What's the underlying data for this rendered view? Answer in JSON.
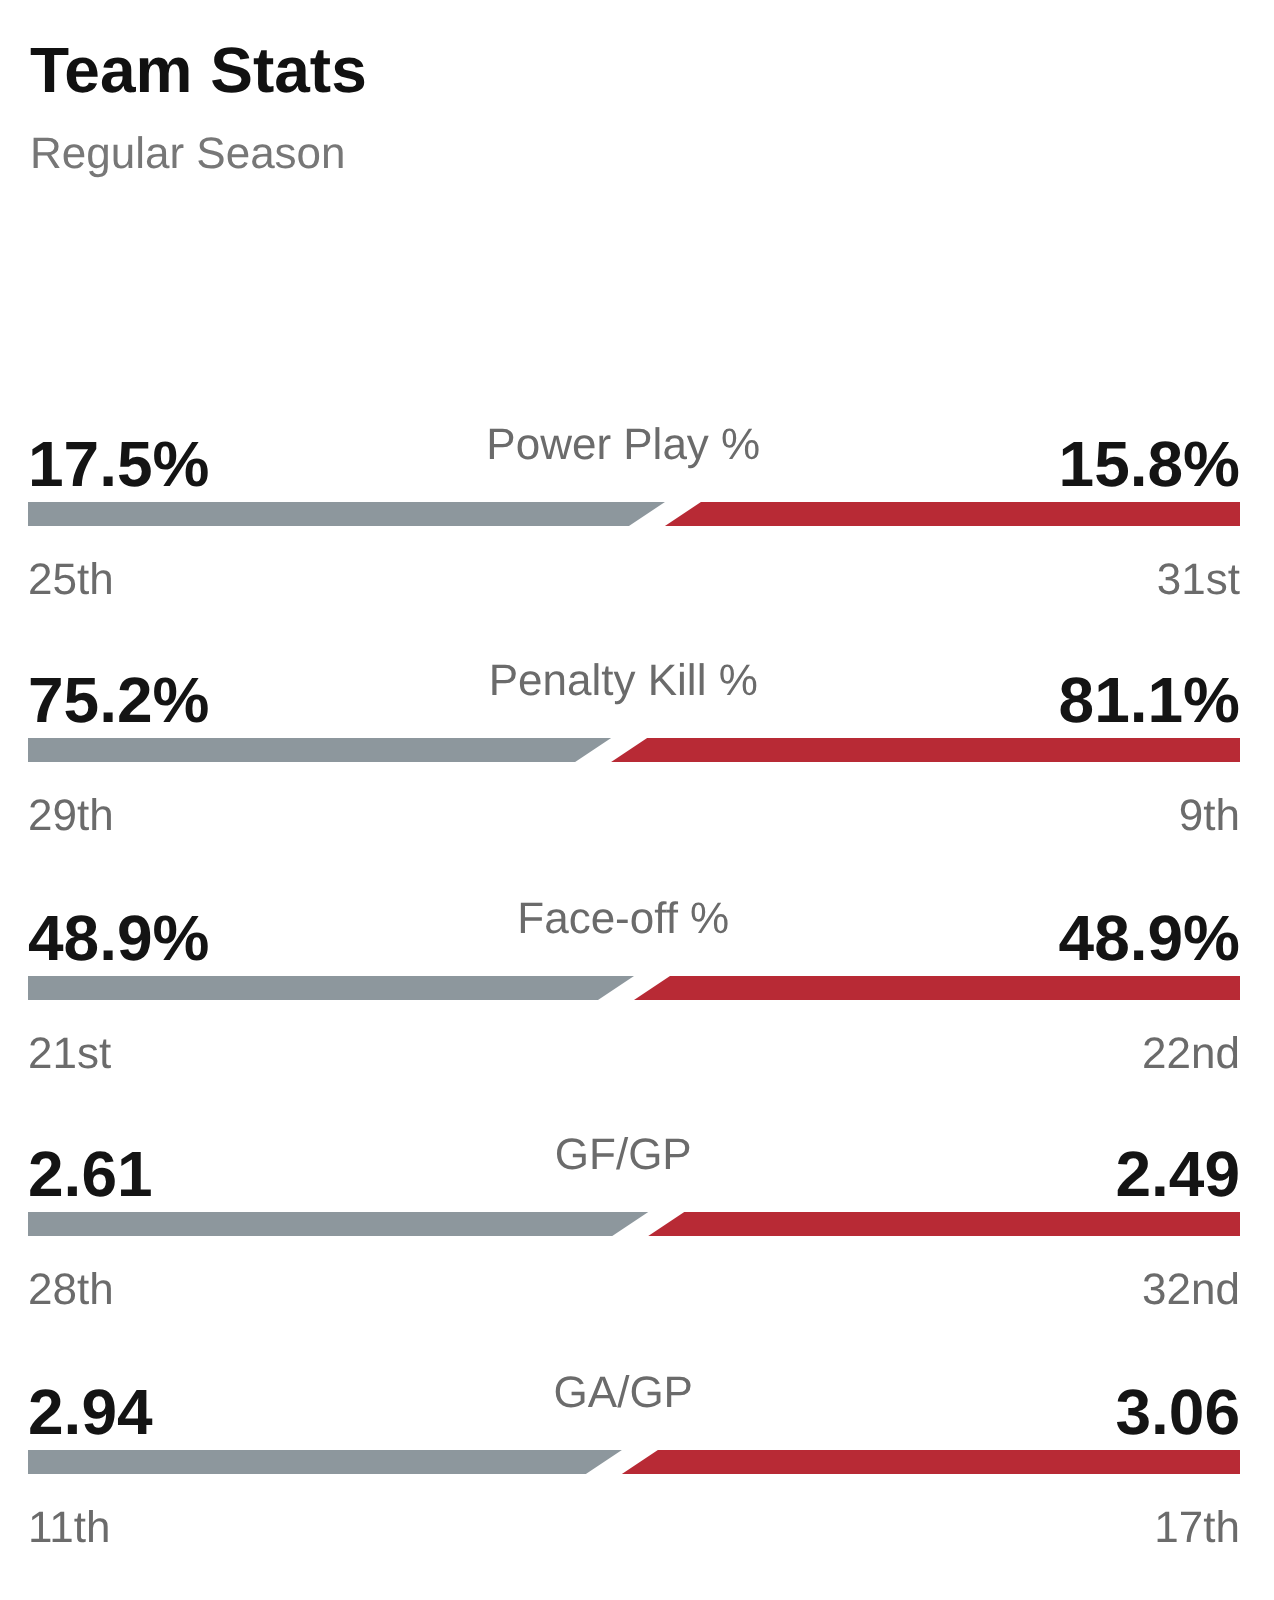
{
  "chart_data": [
    {
      "type": "other",
      "title": "Team Stats",
      "subtitle": "Regular Season"
    },
    {
      "type": "bar",
      "categories": [
        "Power Play %"
      ],
      "series": [
        {
          "color": "#8d979d",
          "values": [
            17.5
          ],
          "value_labels": [
            "17.5%"
          ]
        },
        {
          "color": "#b82a35",
          "values": [
            15.8
          ],
          "value_labels": [
            "15.8%"
          ]
        }
      ],
      "stacked": true,
      "orientation": "horizontal",
      "tick_labels": "y",
      "annotations": [
        "25th",
        "31st"
      ]
    },
    {
      "type": "bar",
      "categories": [
        "Penalty Kill %"
      ],
      "series": [
        {
          "color": "#8d979d",
          "values": [
            75.2
          ],
          "value_labels": [
            "75.2%"
          ]
        },
        {
          "color": "#b82a35",
          "values": [
            81.1
          ],
          "value_labels": [
            "81.1%"
          ]
        }
      ],
      "stacked": true,
      "orientation": "horizontal",
      "tick_labels": "y",
      "annotations": [
        "29th",
        "9th"
      ]
    },
    {
      "type": "bar",
      "categories": [
        "Face-off %"
      ],
      "series": [
        {
          "color": "#8d979d",
          "values": [
            48.9
          ],
          "value_labels": [
            "48.9%"
          ]
        },
        {
          "color": "#b82a35",
          "values": [
            48.9
          ],
          "value_labels": [
            "48.9%"
          ]
        }
      ],
      "stacked": true,
      "orientation": "horizontal",
      "tick_labels": "y",
      "annotations": [
        "21st",
        "22nd"
      ]
    },
    {
      "type": "bar",
      "categories": [
        "GF/GP"
      ],
      "series": [
        {
          "color": "#8d979d",
          "values": [
            2.61
          ],
          "value_labels": [
            "2.61"
          ]
        },
        {
          "color": "#b82a35",
          "values": [
            2.49
          ],
          "value_labels": [
            "2.49"
          ]
        }
      ],
      "stacked": true,
      "orientation": "horizontal",
      "tick_labels": "y",
      "annotations": [
        "28th",
        "32nd"
      ]
    },
    {
      "type": "bar",
      "categories": [
        "GA/GP"
      ],
      "series": [
        {
          "color": "#8d979d",
          "values": [
            2.94
          ],
          "value_labels": [
            "2.94"
          ]
        },
        {
          "color": "#b82a35",
          "values": [
            3.06
          ],
          "value_labels": [
            "3.06"
          ]
        }
      ],
      "stacked": true,
      "orientation": "horizontal",
      "tick_labels": "y",
      "annotations": [
        "11th",
        "17th"
      ]
    }
  ]
}
